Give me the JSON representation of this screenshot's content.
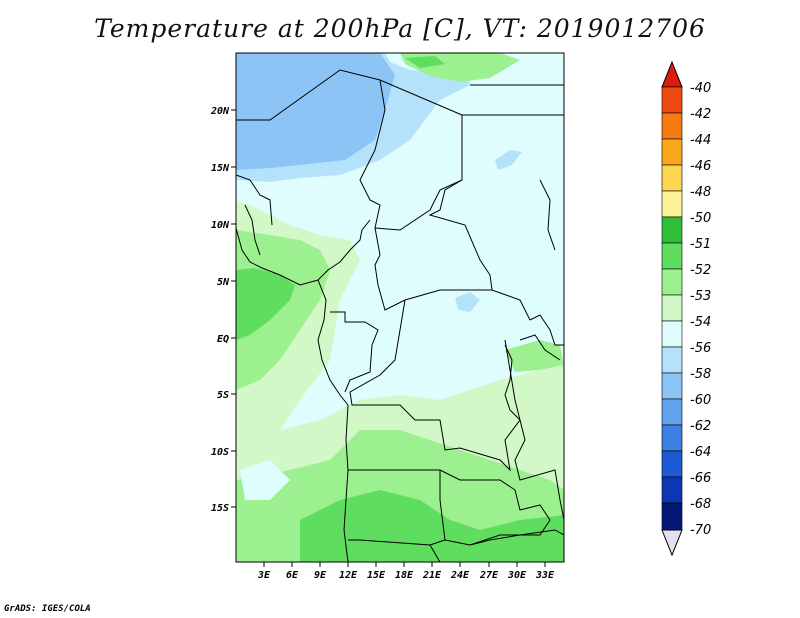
{
  "title": "Temperature at 200hPa [C], VT: 2019012706",
  "credit": "GrADS: IGES/COLA",
  "map": {
    "lat_labels": [
      "20N",
      "15N",
      "10N",
      "5N",
      "EQ",
      "5S",
      "10S",
      "15S"
    ],
    "lon_labels": [
      "3E",
      "6E",
      "9E",
      "12E",
      "15E",
      "18E",
      "21E",
      "24E",
      "27E",
      "30E",
      "33E"
    ]
  },
  "colorbar": {
    "labels": [
      "-40",
      "-42",
      "-44",
      "-46",
      "-48",
      "-50",
      "-51",
      "-52",
      "-53",
      "-54",
      "-56",
      "-58",
      "-60",
      "-62",
      "-64",
      "-66",
      "-68",
      "-70"
    ],
    "colors": [
      "#e01a0d",
      "#ee4a12",
      "#f57a14",
      "#f9a81e",
      "#fcd650",
      "#fdf29a",
      "#2fbf3b",
      "#5fdd5f",
      "#9df08f",
      "#d2f8c8",
      "#e0fdfd",
      "#b4e2fb",
      "#8cc4f6",
      "#62a3ee",
      "#3d7fe3",
      "#1d5ad4",
      "#0c36b4",
      "#051777"
    ]
  }
}
